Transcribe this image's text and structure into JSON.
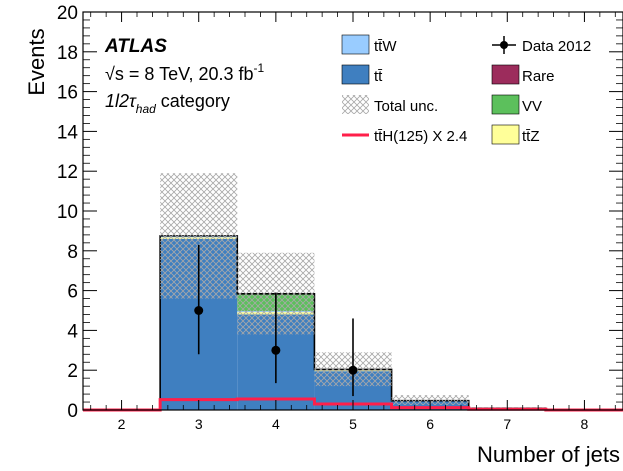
{
  "chart_data": {
    "type": "bar",
    "stacked": true,
    "histogram": true,
    "xlabel": "Number of jets",
    "ylabel": "Events",
    "xlim": [
      1.5,
      8.5
    ],
    "ylim": [
      0,
      20
    ],
    "x_ticks": [
      2,
      3,
      4,
      5,
      6,
      7,
      8
    ],
    "y_ticks": [
      0,
      2,
      4,
      6,
      8,
      10,
      12,
      14,
      16,
      18,
      20
    ],
    "bin_edges": [
      1.5,
      2.5,
      3.5,
      4.5,
      5.5,
      6.5,
      7.5,
      8.5
    ],
    "categories": [
      "2",
      "3",
      "4",
      "5",
      "6",
      "7",
      "8"
    ],
    "colors": {
      "ttbar": "#3f7fc0",
      "ttZ": "#ffff99",
      "ttW": "#99ccff",
      "VV": "#5cc05c",
      "Rare": "#9c2c5c",
      "ttH": "#ff1f4a",
      "data": "#000000",
      "unc_hatch": "#a0a0a0"
    },
    "series": [
      {
        "name": "tt̄",
        "key": "ttbar",
        "values": [
          0.0,
          8.6,
          4.8,
          1.95,
          0.45,
          0.08,
          0.02
        ]
      },
      {
        "name": "tt̄Z",
        "key": "ttZ",
        "values": [
          0.0,
          0.08,
          0.12,
          0.05,
          0.01,
          0.0,
          0.0
        ]
      },
      {
        "name": "tt̄W",
        "key": "ttW",
        "values": [
          0.0,
          0.05,
          0.05,
          0.03,
          0.01,
          0.0,
          0.0
        ]
      },
      {
        "name": "VV",
        "key": "VV",
        "values": [
          0.0,
          0.0,
          0.85,
          0.0,
          0.0,
          0.0,
          0.0
        ]
      },
      {
        "name": "Rare",
        "key": "Rare",
        "values": [
          0.0,
          0.02,
          0.02,
          0.01,
          0.0,
          0.0,
          0.0
        ]
      }
    ],
    "total_unc": {
      "name": "Total unc.",
      "down": [
        0.0,
        5.6,
        3.8,
        1.2,
        0.25,
        0.0,
        0.0
      ],
      "up": [
        0.0,
        11.9,
        7.9,
        2.9,
        0.75,
        0.15,
        0.05
      ]
    },
    "signal": {
      "name": "tt̄H(125) X 2.4",
      "values": [
        0.0,
        0.52,
        0.55,
        0.3,
        0.12,
        0.04,
        0.0
      ]
    },
    "data": {
      "name": "Data 2012",
      "x": [
        3,
        4,
        5
      ],
      "y": [
        5,
        3,
        2
      ],
      "err_low": [
        2.2,
        1.65,
        1.3
      ],
      "err_high": [
        3.3,
        2.9,
        2.6
      ]
    },
    "atlas_label": "ATLAS",
    "energy_label": "√s = 8 TeV, 20.3 fb",
    "lumi_exponent": "-1",
    "category_prefix": "1l2τ",
    "category_sub": "had",
    "category_suffix": " category"
  }
}
